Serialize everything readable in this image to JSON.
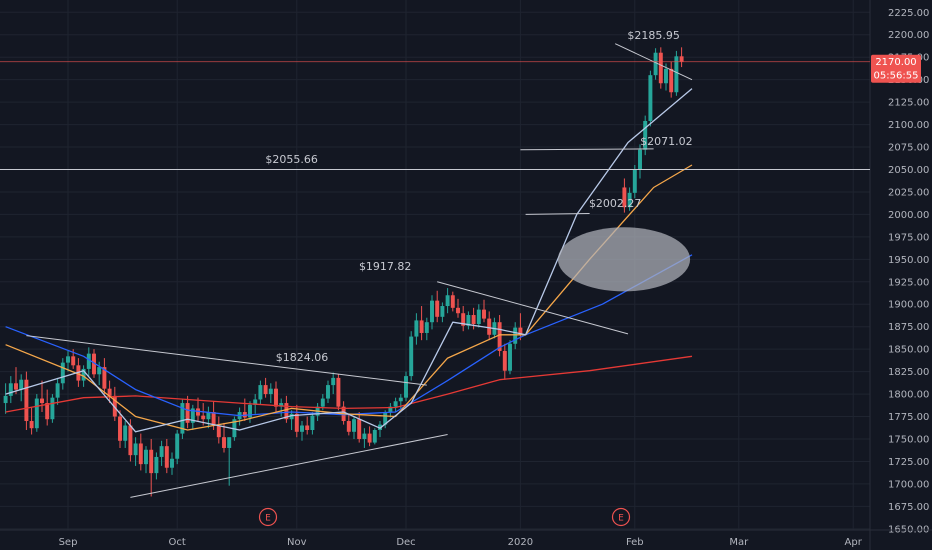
{
  "colors": {
    "background": "#131722",
    "grid": "#1f2430",
    "up": "#26a69a",
    "down": "#ef5350",
    "ma_fast": "#b8c9e8",
    "ma_mid": "#f5a74a",
    "ma_slow": "#2962ff",
    "ma_long": "#e53935",
    "annotation_line": "#c7c9d1",
    "ellipse": "#b0b3bb"
  },
  "chart_data": {
    "type": "candlestick",
    "ylim": [
      1642,
      2232
    ],
    "y_ticks": [
      "2225.00",
      "2200.00",
      "2175.00",
      "2150.00",
      "2125.00",
      "2100.00",
      "2075.00",
      "2050.00",
      "2025.00",
      "2000.00",
      "1975.00",
      "1950.00",
      "1925.00",
      "1900.00",
      "1875.00",
      "1850.00",
      "1825.00",
      "1800.00",
      "1775.00",
      "1750.00",
      "1725.00",
      "1700.00",
      "1675.00",
      "1650.00"
    ],
    "x_ticks": [
      "Sep",
      "Oct",
      "Nov",
      "Dec",
      "2020",
      "Feb",
      "Mar",
      "Apr"
    ],
    "earnings_markers": [
      "E",
      "E"
    ],
    "candles": [
      [
        1790,
        1812,
        1778,
        1798
      ],
      [
        1798,
        1820,
        1790,
        1812
      ],
      [
        1812,
        1830,
        1800,
        1805
      ],
      [
        1805,
        1822,
        1792,
        1816
      ],
      [
        1816,
        1825,
        1760,
        1770
      ],
      [
        1770,
        1785,
        1755,
        1762
      ],
      [
        1762,
        1800,
        1758,
        1795
      ],
      [
        1795,
        1815,
        1780,
        1790
      ],
      [
        1790,
        1805,
        1765,
        1772
      ],
      [
        1772,
        1800,
        1768,
        1796
      ],
      [
        1796,
        1818,
        1788,
        1812
      ],
      [
        1812,
        1840,
        1805,
        1835
      ],
      [
        1835,
        1848,
        1825,
        1842
      ],
      [
        1842,
        1850,
        1828,
        1832
      ],
      [
        1832,
        1840,
        1808,
        1815
      ],
      [
        1815,
        1832,
        1808,
        1828
      ],
      [
        1828,
        1852,
        1820,
        1845
      ],
      [
        1845,
        1850,
        1818,
        1822
      ],
      [
        1822,
        1836,
        1810,
        1830
      ],
      [
        1830,
        1840,
        1800,
        1806
      ],
      [
        1806,
        1815,
        1790,
        1798
      ],
      [
        1798,
        1808,
        1770,
        1775
      ],
      [
        1775,
        1782,
        1740,
        1748
      ],
      [
        1748,
        1770,
        1740,
        1765
      ],
      [
        1765,
        1772,
        1725,
        1732
      ],
      [
        1732,
        1752,
        1720,
        1745
      ],
      [
        1745,
        1756,
        1715,
        1722
      ],
      [
        1722,
        1742,
        1712,
        1738
      ],
      [
        1738,
        1750,
        1686,
        1712
      ],
      [
        1712,
        1735,
        1705,
        1730
      ],
      [
        1730,
        1748,
        1720,
        1742
      ],
      [
        1742,
        1750,
        1712,
        1718
      ],
      [
        1718,
        1735,
        1710,
        1728
      ],
      [
        1728,
        1760,
        1722,
        1756
      ],
      [
        1756,
        1795,
        1750,
        1790
      ],
      [
        1790,
        1798,
        1762,
        1768
      ],
      [
        1768,
        1788,
        1760,
        1784
      ],
      [
        1784,
        1796,
        1770,
        1776
      ],
      [
        1776,
        1790,
        1765,
        1772
      ],
      [
        1772,
        1786,
        1762,
        1780
      ],
      [
        1780,
        1792,
        1760,
        1765
      ],
      [
        1765,
        1775,
        1745,
        1752
      ],
      [
        1752,
        1768,
        1735,
        1740
      ],
      [
        1740,
        1750,
        1698,
        1752
      ],
      [
        1752,
        1775,
        1748,
        1772
      ],
      [
        1772,
        1785,
        1765,
        1780
      ],
      [
        1780,
        1795,
        1770,
        1774
      ],
      [
        1774,
        1792,
        1768,
        1788
      ],
      [
        1788,
        1800,
        1778,
        1794
      ],
      [
        1794,
        1815,
        1788,
        1810
      ],
      [
        1810,
        1818,
        1796,
        1800
      ],
      [
        1800,
        1812,
        1790,
        1806
      ],
      [
        1806,
        1814,
        1780,
        1786
      ],
      [
        1786,
        1795,
        1775,
        1790
      ],
      [
        1790,
        1798,
        1768,
        1772
      ],
      [
        1772,
        1782,
        1760,
        1778
      ],
      [
        1778,
        1788,
        1752,
        1758
      ],
      [
        1758,
        1770,
        1748,
        1765
      ],
      [
        1765,
        1775,
        1755,
        1760
      ],
      [
        1760,
        1780,
        1755,
        1776
      ],
      [
        1776,
        1790,
        1770,
        1786
      ],
      [
        1786,
        1800,
        1782,
        1795
      ],
      [
        1795,
        1815,
        1790,
        1810
      ],
      [
        1810,
        1824,
        1800,
        1818
      ],
      [
        1818,
        1822,
        1782,
        1786
      ],
      [
        1786,
        1792,
        1766,
        1770
      ],
      [
        1770,
        1778,
        1754,
        1758
      ],
      [
        1758,
        1775,
        1750,
        1772
      ],
      [
        1772,
        1780,
        1746,
        1750
      ],
      [
        1750,
        1762,
        1740,
        1756
      ],
      [
        1756,
        1764,
        1742,
        1746
      ],
      [
        1746,
        1762,
        1744,
        1760
      ],
      [
        1760,
        1770,
        1752,
        1766
      ],
      [
        1766,
        1782,
        1762,
        1780
      ],
      [
        1780,
        1790,
        1774,
        1786
      ],
      [
        1786,
        1796,
        1780,
        1792
      ],
      [
        1792,
        1800,
        1784,
        1796
      ],
      [
        1796,
        1825,
        1792,
        1820
      ],
      [
        1820,
        1870,
        1815,
        1864
      ],
      [
        1864,
        1890,
        1855,
        1882
      ],
      [
        1882,
        1898,
        1860,
        1868
      ],
      [
        1868,
        1885,
        1860,
        1880
      ],
      [
        1880,
        1910,
        1872,
        1904
      ],
      [
        1904,
        1915,
        1880,
        1886
      ],
      [
        1886,
        1902,
        1880,
        1898
      ],
      [
        1898,
        1918,
        1890,
        1910
      ],
      [
        1910,
        1914,
        1892,
        1896
      ],
      [
        1896,
        1906,
        1885,
        1890
      ],
      [
        1890,
        1898,
        1870,
        1876
      ],
      [
        1876,
        1892,
        1872,
        1888
      ],
      [
        1888,
        1896,
        1872,
        1878
      ],
      [
        1878,
        1900,
        1874,
        1894
      ],
      [
        1894,
        1905,
        1880,
        1884
      ],
      [
        1884,
        1892,
        1860,
        1866
      ],
      [
        1866,
        1885,
        1862,
        1880
      ],
      [
        1880,
        1888,
        1842,
        1848
      ],
      [
        1848,
        1856,
        1816,
        1826
      ],
      [
        1826,
        1860,
        1822,
        1856
      ],
      [
        1856,
        1880,
        1850,
        1874
      ],
      [
        1874,
        1890,
        1860,
        1866
      ],
      [
        2030,
        2040,
        2002,
        2008
      ],
      [
        2008,
        2030,
        2004,
        2024
      ],
      [
        2024,
        2055,
        2018,
        2050
      ],
      [
        2050,
        2078,
        2040,
        2072
      ],
      [
        2072,
        2110,
        2066,
        2104
      ],
      [
        2104,
        2160,
        2098,
        2155
      ],
      [
        2155,
        2185,
        2150,
        2180
      ],
      [
        2180,
        2186,
        2140,
        2146
      ],
      [
        2146,
        2168,
        2138,
        2162
      ],
      [
        2162,
        2170,
        2130,
        2136
      ],
      [
        2136,
        2182,
        2132,
        2176
      ],
      [
        2176,
        2186,
        2164,
        2170
      ]
    ],
    "ma_fast": [
      [
        0,
        1800
      ],
      [
        15,
        1826
      ],
      [
        25,
        1758
      ],
      [
        35,
        1772
      ],
      [
        45,
        1760
      ],
      [
        55,
        1776
      ],
      [
        65,
        1780
      ],
      [
        72,
        1762
      ],
      [
        78,
        1790
      ],
      [
        86,
        1880
      ],
      [
        95,
        1872
      ],
      [
        100,
        1866
      ],
      [
        104,
        2000
      ],
      [
        108,
        2080
      ],
      [
        113,
        2140
      ]
    ],
    "ma_mid": [
      [
        0,
        1855
      ],
      [
        15,
        1820
      ],
      [
        25,
        1775
      ],
      [
        35,
        1760
      ],
      [
        45,
        1770
      ],
      [
        55,
        1784
      ],
      [
        65,
        1778
      ],
      [
        75,
        1775
      ],
      [
        85,
        1840
      ],
      [
        95,
        1866
      ],
      [
        100,
        1866
      ],
      [
        105,
        1950
      ],
      [
        110,
        2030
      ],
      [
        113,
        2055
      ]
    ],
    "ma_slow": [
      [
        0,
        1875
      ],
      [
        15,
        1842
      ],
      [
        25,
        1805
      ],
      [
        35,
        1782
      ],
      [
        45,
        1776
      ],
      [
        55,
        1780
      ],
      [
        65,
        1777
      ],
      [
        75,
        1780
      ],
      [
        85,
        1815
      ],
      [
        95,
        1852
      ],
      [
        100,
        1866
      ],
      [
        106,
        1900
      ],
      [
        113,
        1955
      ]
    ],
    "ma_long": [
      [
        0,
        1780
      ],
      [
        15,
        1796
      ],
      [
        25,
        1798
      ],
      [
        35,
        1794
      ],
      [
        45,
        1790
      ],
      [
        55,
        1786
      ],
      [
        65,
        1784
      ],
      [
        75,
        1785
      ],
      [
        85,
        1800
      ],
      [
        95,
        1816
      ],
      [
        105,
        1826
      ],
      [
        113,
        1842
      ]
    ],
    "trendlines": [
      [
        [
          4,
          1865
        ],
        [
          81,
          1810
        ]
      ],
      [
        [
          24,
          1685
        ],
        [
          85,
          1755
        ]
      ],
      [
        [
          83,
          1925
        ],
        [
          108,
          1867
        ]
      ],
      [
        [
          100,
          2000
        ],
        [
          105,
          2001
        ]
      ],
      [
        [
          99,
          2072
        ],
        [
          110,
          2073
        ]
      ],
      [
        [
          107,
          2190
        ],
        [
          113,
          2150
        ]
      ],
      [
        [
          0,
          2050
        ],
        [
          146,
          2050
        ]
      ]
    ],
    "ellipse": {
      "center": [
        99,
        1950
      ],
      "rx_bars": 6.2,
      "ry_value": 21
    },
    "annotations": [
      {
        "text": "$2185.95",
        "x": 110,
        "y": 2195
      },
      {
        "text": "$2071.02",
        "x": 111,
        "y": 2077
      },
      {
        "text": "$2002.27",
        "x": 107,
        "y": 2008
      },
      {
        "text": "$2055.66",
        "x": 55,
        "y": 2057
      },
      {
        "text": "$1917.82",
        "x": 73,
        "y": 1938
      },
      {
        "text": "$1824.06",
        "x": 57,
        "y": 1837
      }
    ],
    "price_tag": {
      "value": "2170.00",
      "countdown": "05:56:55",
      "y": 2170
    },
    "grid": true
  }
}
